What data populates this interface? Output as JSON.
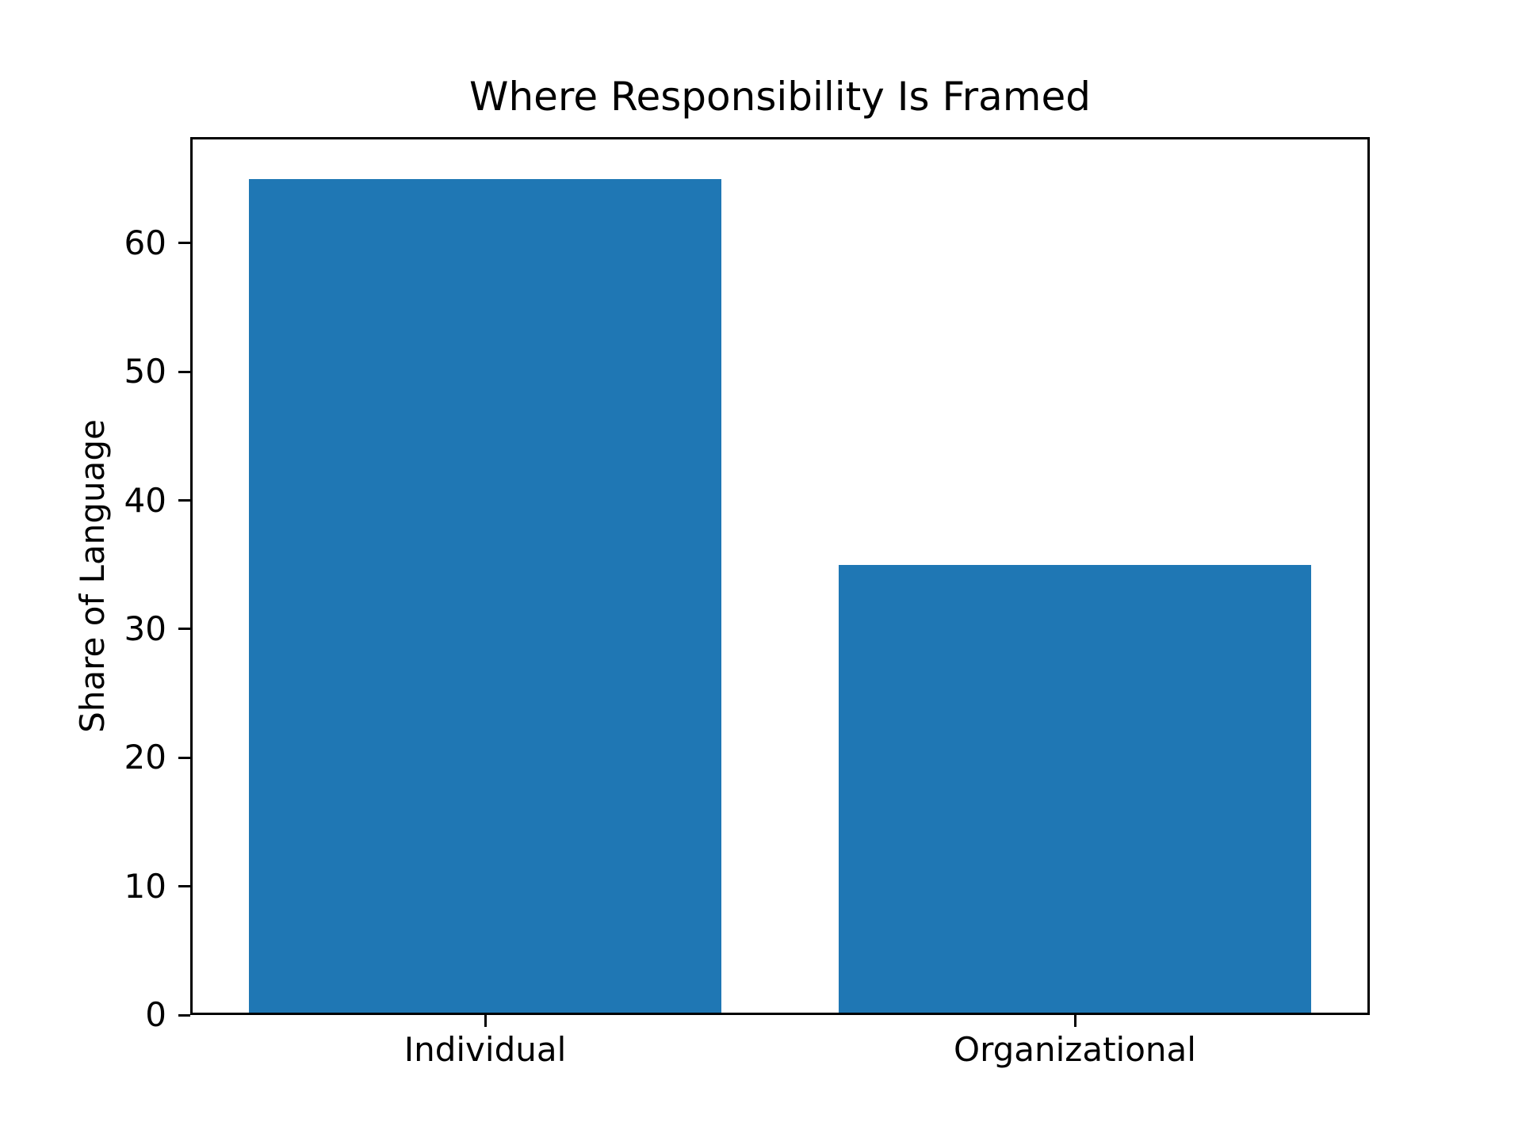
{
  "chart_data": {
    "type": "bar",
    "title": "Where Responsibility Is Framed",
    "xlabel": "",
    "ylabel": "Share of Language",
    "categories": [
      "Individual",
      "Organizational"
    ],
    "values": [
      65,
      35
    ],
    "ylim": [
      0,
      68.25
    ],
    "yticks": [
      0,
      10,
      20,
      30,
      40,
      50,
      60
    ],
    "bar_color": "#1f77b4",
    "axis_color": "#000000",
    "grid": false,
    "legend": false
  }
}
